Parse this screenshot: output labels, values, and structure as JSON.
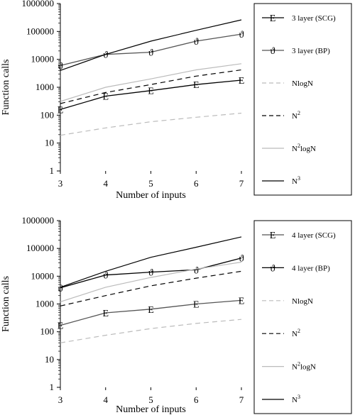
{
  "chart_data": [
    {
      "type": "line",
      "xlabel": "Number of inputs",
      "ylabel": "Function calls",
      "yscale": "log",
      "ylim": [
        1,
        1000000
      ],
      "xlim": [
        3,
        7
      ],
      "x": [
        3,
        4,
        5,
        6,
        7
      ],
      "xticks": [
        "3",
        "4",
        "5",
        "6",
        "7"
      ],
      "yticks": [
        "1",
        "10",
        "100",
        "1000",
        "10000",
        "100000",
        "1000000"
      ],
      "legend_position": "right",
      "series": [
        {
          "name": "3 layer (SCG)",
          "marker": "E",
          "style": "solid",
          "color": "#000000",
          "values": [
            160,
            480,
            760,
            1250,
            1800
          ]
        },
        {
          "name": "3 layer (BP)",
          "marker": "ϑ",
          "style": "solid",
          "color": "#555555",
          "values": [
            6000,
            15000,
            18000,
            45000,
            80000
          ]
        },
        {
          "name": "NlogN",
          "legend": [
            "NlogN"
          ],
          "style": "dashed",
          "color": "#bbbbbb",
          "values": [
            19,
            35,
            58,
            84,
            118
          ]
        },
        {
          "name": "N2",
          "legend": [
            "N",
            "2"
          ],
          "style": "dashed",
          "color": "#000000",
          "values": [
            260,
            650,
            1250,
            2500,
            4200
          ]
        },
        {
          "name": "N2logN",
          "legend": [
            "N",
            "2",
            "logN"
          ],
          "style": "solid",
          "color": "#bbbbbb",
          "values": [
            310,
            1000,
            2000,
            4200,
            7000
          ]
        },
        {
          "name": "N3",
          "legend": [
            "N",
            "3"
          ],
          "style": "solid",
          "color": "#000000",
          "values": [
            4000,
            15000,
            45000,
            110000,
            260000
          ]
        }
      ]
    },
    {
      "type": "line",
      "xlabel": "Number of inputs",
      "ylabel": "Function calls",
      "yscale": "log",
      "ylim": [
        1,
        1000000
      ],
      "xlim": [
        3,
        7
      ],
      "x": [
        3,
        4,
        5,
        6,
        7
      ],
      "xticks": [
        "3",
        "4",
        "5",
        "6",
        "7"
      ],
      "yticks": [
        "1",
        "10",
        "100",
        "1000",
        "10000",
        "100000",
        "1000000"
      ],
      "legend_position": "right",
      "series": [
        {
          "name": "4 layer (SCG)",
          "marker": "E",
          "style": "solid",
          "color": "#555555",
          "values": [
            170,
            480,
            650,
            1000,
            1350
          ]
        },
        {
          "name": "4 layer (BP)",
          "marker": "ϑ",
          "style": "solid",
          "color": "#000000",
          "values": [
            3800,
            11000,
            14000,
            17000,
            45000
          ]
        },
        {
          "name": "NlogN",
          "legend": [
            "NlogN"
          ],
          "style": "dashed",
          "color": "#bbbbbb",
          "values": [
            40,
            75,
            130,
            200,
            280
          ]
        },
        {
          "name": "N2",
          "legend": [
            "N",
            "2"
          ],
          "style": "dashed",
          "color": "#000000",
          "values": [
            850,
            2000,
            4500,
            8500,
            15000
          ]
        },
        {
          "name": "N2logN",
          "legend": [
            "N",
            "2",
            "logN"
          ],
          "style": "solid",
          "color": "#bbbbbb",
          "values": [
            1200,
            4000,
            9000,
            18000,
            32000
          ]
        },
        {
          "name": "N3",
          "legend": [
            "N",
            "3"
          ],
          "style": "solid",
          "color": "#000000",
          "values": [
            4000,
            15000,
            48000,
            110000,
            260000
          ]
        }
      ]
    }
  ]
}
